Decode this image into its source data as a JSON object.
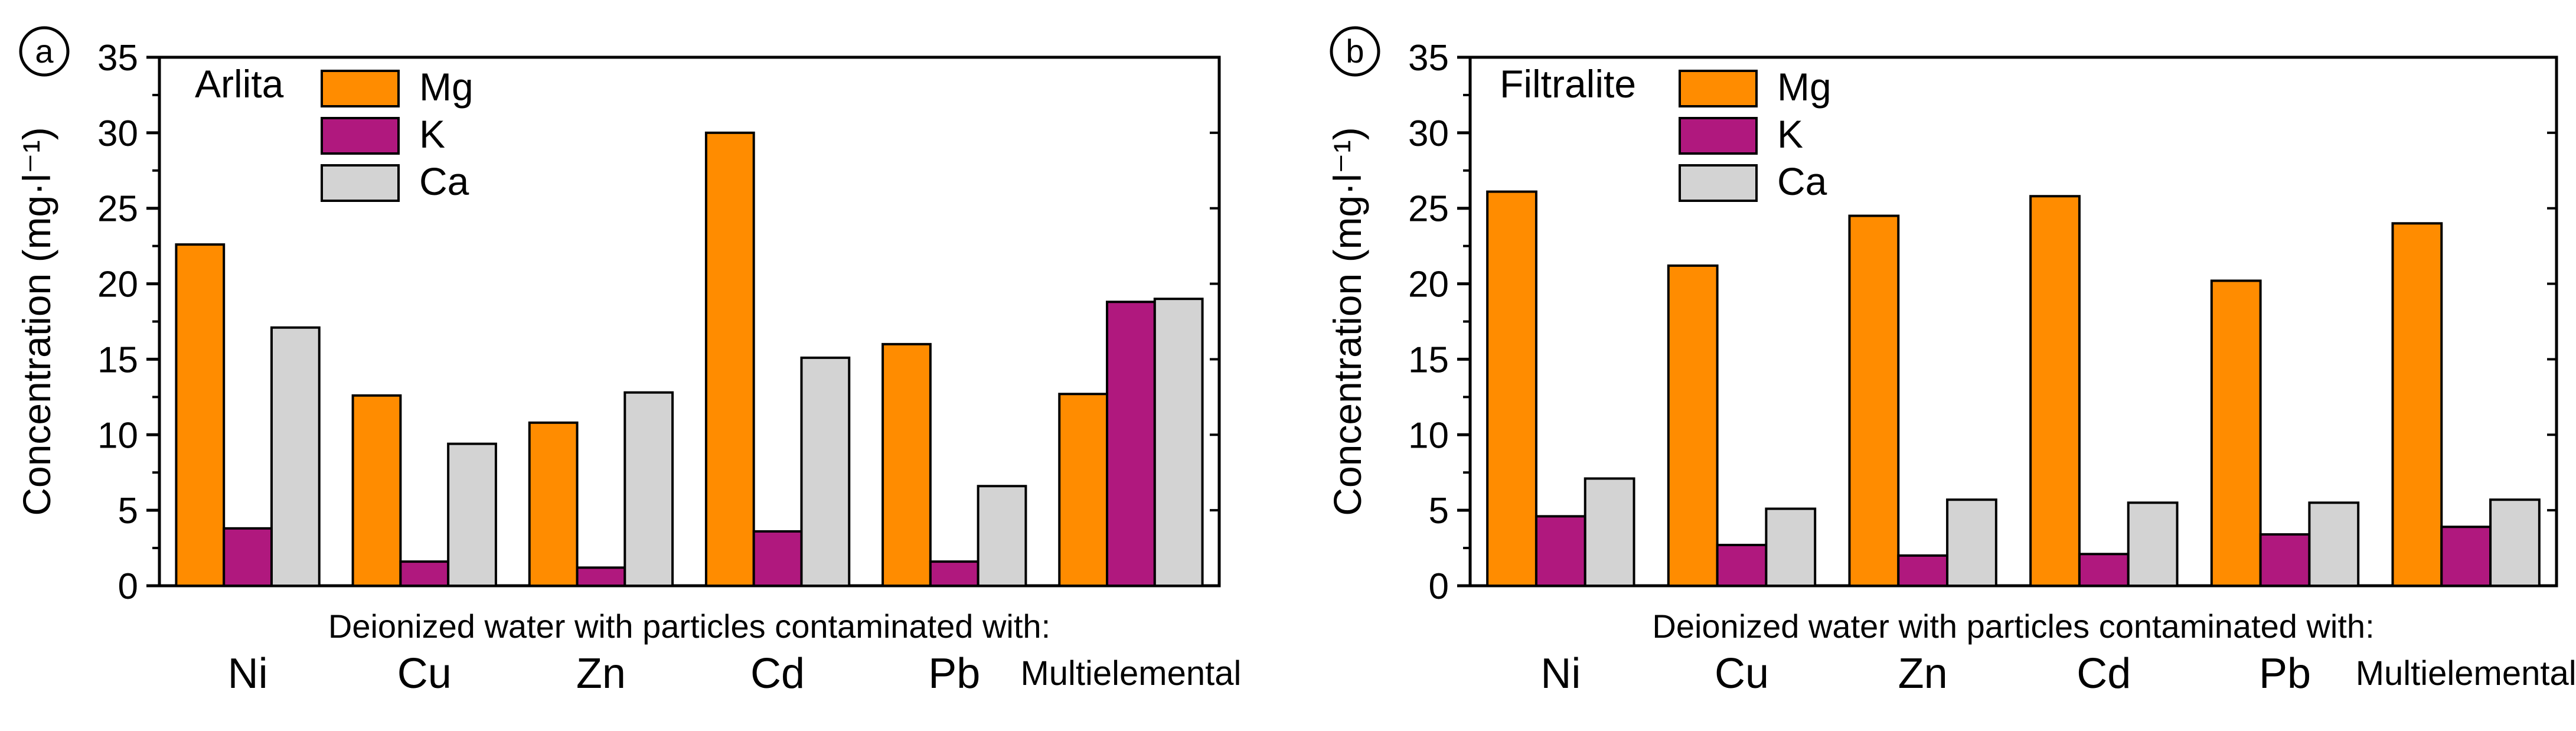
{
  "chart_data": [
    {
      "panel_label": "a",
      "type": "bar",
      "title": "Arlita",
      "ylabel": "Concentration (mg·l⁻¹)",
      "xlabel": "Deionized water with particles contaminated with:",
      "ylim": [
        0,
        35
      ],
      "yticks": [
        0,
        5,
        10,
        15,
        20,
        25,
        30,
        35
      ],
      "categories": [
        "Ni",
        "Cu",
        "Zn",
        "Cd",
        "Pb",
        "Multielemental"
      ],
      "series": [
        {
          "name": "Mg",
          "color": "#ff8c00",
          "values": [
            22.6,
            12.6,
            10.8,
            30.0,
            16.0,
            12.7
          ]
        },
        {
          "name": "K",
          "color": "#b0187e",
          "values": [
            3.8,
            1.6,
            1.2,
            3.6,
            1.6,
            18.8
          ]
        },
        {
          "name": "Ca",
          "color": "#d3d3d3",
          "values": [
            17.1,
            9.4,
            12.8,
            15.1,
            6.6,
            19.0
          ]
        }
      ],
      "legend": "top-left"
    },
    {
      "panel_label": "b",
      "type": "bar",
      "title": "Filtralite",
      "ylabel": "Concentration (mg·l⁻¹)",
      "xlabel": "Deionized water with particles contaminated with:",
      "ylim": [
        0,
        35
      ],
      "yticks": [
        0,
        5,
        10,
        15,
        20,
        25,
        30,
        35
      ],
      "categories": [
        "Ni",
        "Cu",
        "Zn",
        "Cd",
        "Pb",
        "Multielemental"
      ],
      "series": [
        {
          "name": "Mg",
          "color": "#ff8c00",
          "values": [
            26.1,
            21.2,
            24.5,
            25.8,
            20.2,
            24.0
          ]
        },
        {
          "name": "K",
          "color": "#b0187e",
          "values": [
            4.6,
            2.7,
            2.0,
            2.1,
            3.4,
            3.9
          ]
        },
        {
          "name": "Ca",
          "color": "#d3d3d3",
          "values": [
            7.1,
            5.1,
            5.7,
            5.5,
            5.5,
            5.7
          ]
        }
      ],
      "legend": "top-left"
    }
  ]
}
